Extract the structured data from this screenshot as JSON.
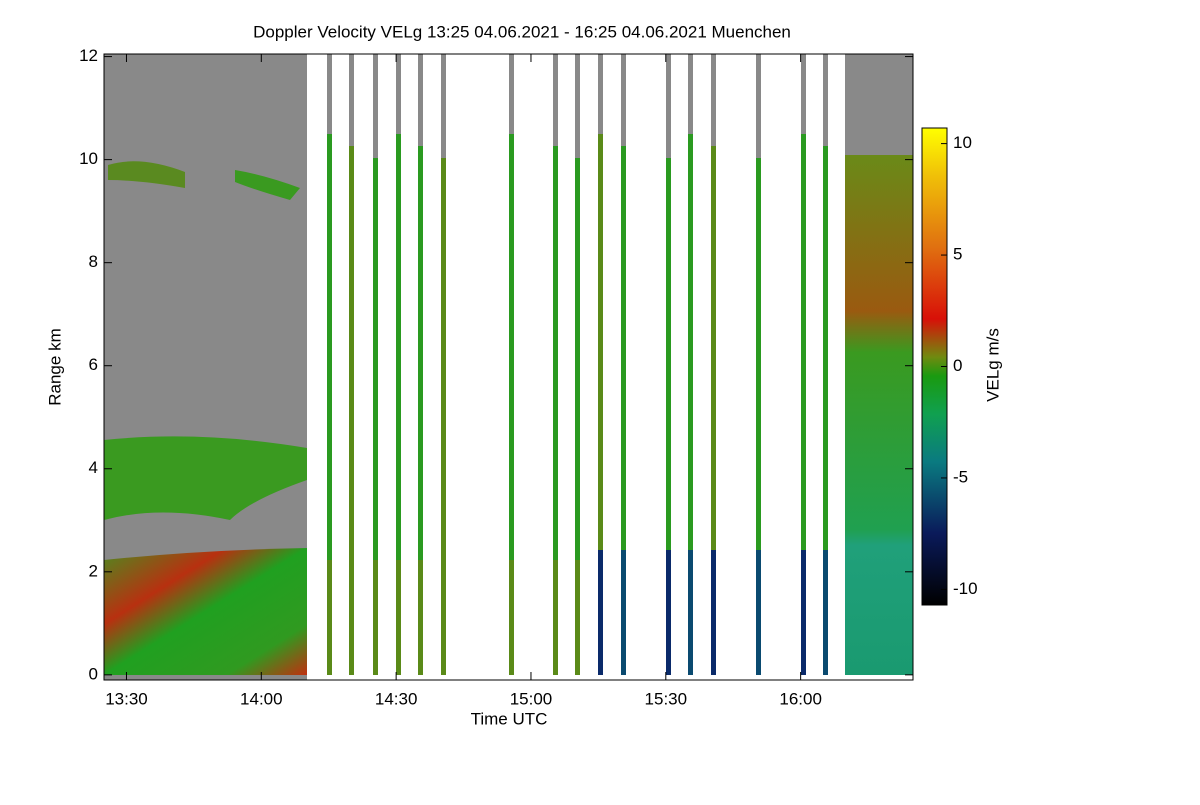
{
  "chart_data": {
    "type": "heatmap",
    "title": "Doppler Velocity VELg   13:25 04.06.2021 - 16:25 04.06.2021 Muenchen",
    "x_label": "Time UTC",
    "y_label": "Range km",
    "colorbar_label": "VELg m/s",
    "xlim": [
      0,
      180
    ],
    "xticks": [
      {
        "value": 5,
        "label": "13:30"
      },
      {
        "value": 35,
        "label": "14:00"
      },
      {
        "value": 65,
        "label": "14:30"
      },
      {
        "value": 95,
        "label": "15:00"
      },
      {
        "value": 125,
        "label": "15:30"
      },
      {
        "value": 155,
        "label": "16:00"
      }
    ],
    "ylim": [
      -0.1,
      12.05
    ],
    "yticks": [
      0,
      2,
      4,
      6,
      8,
      10,
      12
    ],
    "zlim": [
      -10.7,
      10.7
    ],
    "zticks": [
      -10,
      -5,
      0,
      5,
      10
    ]
  }
}
